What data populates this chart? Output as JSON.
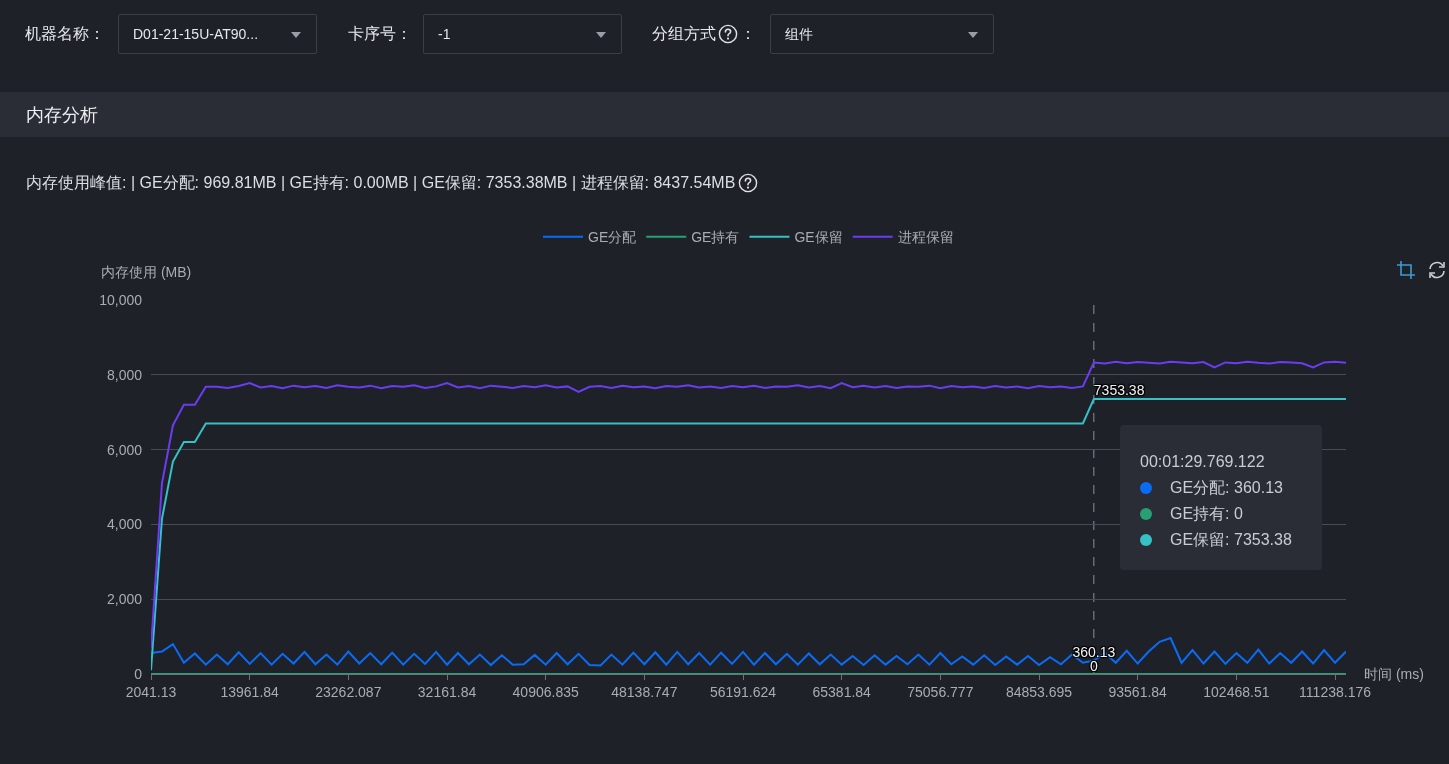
{
  "chart_data": {
    "type": "line",
    "title": "内存分析",
    "subtitle": "内存使用峰值: | GE分配: 969.81MB | GE持有: 0.00MB | GE保留: 7353.38MB | 进程保留: 8437.54MB",
    "xlabel": "时间 (ms)",
    "ylabel": "内存使用 (MB)",
    "annotations": [
      "机器名称：",
      "D01-21-15U-AT90...",
      "卡序号：",
      "-1",
      "分组方式",
      "：",
      "组件",
      "00:01:29.769.122",
      "GE分配: 360.13",
      "GE持有: 0",
      "GE保留: 7353.38"
    ],
    "categories": [
      "2041.13",
      null,
      null,
      null,
      null,
      null,
      null,
      null,
      null,
      "13961.84",
      null,
      null,
      null,
      null,
      null,
      null,
      null,
      null,
      "23262.087",
      null,
      null,
      null,
      null,
      null,
      null,
      null,
      null,
      "32161.84",
      null,
      null,
      null,
      null,
      null,
      null,
      null,
      null,
      "40906.835",
      null,
      null,
      null,
      null,
      null,
      null,
      null,
      null,
      "48138.747",
      null,
      null,
      null,
      null,
      null,
      null,
      null,
      null,
      "56191.624",
      null,
      null,
      null,
      null,
      null,
      null,
      null,
      null,
      "65381.84",
      null,
      null,
      null,
      null,
      null,
      null,
      null,
      null,
      "75056.777",
      null,
      null,
      null,
      null,
      null,
      null,
      null,
      null,
      "84853.695",
      null,
      null,
      null,
      null,
      null,
      null,
      null,
      null,
      "93561.84",
      null,
      null,
      null,
      null,
      null,
      null,
      null,
      null,
      "102468.51",
      null,
      null,
      null,
      null,
      null,
      null,
      null,
      null,
      "111238.176",
      null
    ],
    "series": [
      {
        "name": "GE分配",
        "color": "#0a6cf5",
        "values": [
          560,
          600,
          800,
          300,
          550,
          250,
          520,
          260,
          580,
          270,
          560,
          250,
          540,
          280,
          590,
          260,
          520,
          250,
          600,
          280,
          560,
          260,
          570,
          250,
          540,
          270,
          590,
          250,
          560,
          260,
          520,
          240,
          500,
          250,
          260,
          510,
          250,
          560,
          260,
          540,
          240,
          230,
          520,
          250,
          570,
          260,
          580,
          250,
          590,
          260,
          560,
          250,
          570,
          270,
          590,
          250,
          560,
          260,
          540,
          250,
          550,
          260,
          520,
          250,
          480,
          240,
          500,
          250,
          480,
          260,
          520,
          250,
          560,
          260,
          470,
          250,
          500,
          240,
          470,
          250,
          480,
          240,
          450,
          260,
          520,
          300,
          360.13,
          560,
          300,
          620,
          280,
          600,
          860,
          960,
          300,
          640,
          280,
          600,
          270,
          560,
          300,
          650,
          280,
          560,
          300,
          600,
          280,
          640,
          300,
          600
        ],
        "value_labels": [
          null,
          null,
          null,
          null,
          null,
          null,
          null,
          null,
          null,
          null,
          null,
          null,
          null,
          null,
          null,
          null,
          null,
          null,
          null,
          null,
          null,
          null,
          null,
          null,
          null,
          null,
          null,
          null,
          null,
          null,
          null,
          null,
          null,
          null,
          null,
          null,
          null,
          null,
          null,
          null,
          null,
          null,
          null,
          null,
          null,
          null,
          null,
          null,
          null,
          null,
          null,
          null,
          null,
          null,
          null,
          null,
          null,
          null,
          null,
          null,
          null,
          null,
          null,
          null,
          null,
          null,
          null,
          null,
          null,
          null,
          null,
          null,
          null,
          null,
          null,
          null,
          null,
          null,
          null,
          null,
          null,
          null,
          null,
          null,
          null,
          null,
          "360.13",
          null,
          null,
          null,
          null,
          null,
          null,
          null,
          null,
          null,
          null,
          null,
          null,
          null,
          null,
          null,
          null,
          null,
          null,
          null,
          null,
          null,
          null,
          null
        ]
      },
      {
        "name": "GE持有",
        "color": "#27a074",
        "values": [
          0,
          0,
          0,
          0,
          0,
          0,
          0,
          0,
          0,
          0,
          0,
          0,
          0,
          0,
          0,
          0,
          0,
          0,
          0,
          0,
          0,
          0,
          0,
          0,
          0,
          0,
          0,
          0,
          0,
          0,
          0,
          0,
          0,
          0,
          0,
          0,
          0,
          0,
          0,
          0,
          0,
          0,
          0,
          0,
          0,
          0,
          0,
          0,
          0,
          0,
          0,
          0,
          0,
          0,
          0,
          0,
          0,
          0,
          0,
          0,
          0,
          0,
          0,
          0,
          0,
          0,
          0,
          0,
          0,
          0,
          0,
          0,
          0,
          0,
          0,
          0,
          0,
          0,
          0,
          0,
          0,
          0,
          0,
          0,
          0,
          0,
          0,
          0,
          0,
          0,
          0,
          0,
          0,
          0,
          0,
          0,
          0,
          0,
          0,
          0,
          0,
          0,
          0,
          0,
          0,
          0,
          0,
          0,
          0,
          0
        ],
        "value_labels": [
          null,
          null,
          null,
          null,
          null,
          null,
          null,
          null,
          null,
          null,
          null,
          null,
          null,
          null,
          null,
          null,
          null,
          null,
          null,
          null,
          null,
          null,
          null,
          null,
          null,
          null,
          null,
          null,
          null,
          null,
          null,
          null,
          null,
          null,
          null,
          null,
          null,
          null,
          null,
          null,
          null,
          null,
          null,
          null,
          null,
          null,
          null,
          null,
          null,
          null,
          null,
          null,
          null,
          null,
          null,
          null,
          null,
          null,
          null,
          null,
          null,
          null,
          null,
          null,
          null,
          null,
          null,
          null,
          null,
          null,
          null,
          null,
          null,
          null,
          null,
          null,
          null,
          null,
          null,
          null,
          null,
          null,
          null,
          null,
          null,
          null,
          "0",
          null,
          null,
          null,
          null,
          null,
          null,
          null,
          null,
          null,
          null,
          null,
          null,
          null,
          null,
          null,
          null,
          null,
          null,
          null,
          null,
          null,
          null,
          null
        ]
      },
      {
        "name": "GE保留",
        "color": "#35c1c6",
        "values": [
          100,
          4150,
          5680,
          6200,
          6200,
          6700,
          6700,
          6700,
          6700,
          6700,
          6700,
          6700,
          6700,
          6700,
          6700,
          6700,
          6700,
          6700,
          6700,
          6700,
          6700,
          6700,
          6700,
          6700,
          6700,
          6700,
          6700,
          6700,
          6700,
          6700,
          6700,
          6700,
          6700,
          6700,
          6700,
          6700,
          6700,
          6700,
          6700,
          6700,
          6700,
          6700,
          6700,
          6700,
          6700,
          6700,
          6700,
          6700,
          6700,
          6700,
          6700,
          6700,
          6700,
          6700,
          6700,
          6700,
          6700,
          6700,
          6700,
          6700,
          6700,
          6700,
          6700,
          6700,
          6700,
          6700,
          6700,
          6700,
          6700,
          6700,
          6700,
          6700,
          6700,
          6700,
          6700,
          6700,
          6700,
          6700,
          6700,
          6700,
          6700,
          6700,
          6700,
          6700,
          6700,
          6700,
          7353.38,
          7350,
          7350,
          7350,
          7350,
          7350,
          7350,
          7350,
          7350,
          7350,
          7350,
          7350,
          7350,
          7350,
          7350,
          7350,
          7350,
          7350,
          7350,
          7350,
          7350,
          7350,
          7350,
          7350
        ],
        "value_labels": [
          null,
          null,
          null,
          null,
          null,
          null,
          null,
          null,
          null,
          null,
          null,
          null,
          null,
          null,
          null,
          null,
          null,
          null,
          null,
          null,
          null,
          null,
          null,
          null,
          null,
          null,
          null,
          null,
          null,
          null,
          null,
          null,
          null,
          null,
          null,
          null,
          null,
          null,
          null,
          null,
          null,
          null,
          null,
          null,
          null,
          null,
          null,
          null,
          null,
          null,
          null,
          null,
          null,
          null,
          null,
          null,
          null,
          null,
          null,
          null,
          null,
          null,
          null,
          null,
          null,
          null,
          null,
          null,
          null,
          null,
          null,
          null,
          null,
          null,
          null,
          null,
          null,
          null,
          null,
          null,
          null,
          null,
          null,
          null,
          null,
          null,
          "7353.38",
          null,
          null,
          null,
          null,
          null,
          null,
          null,
          null,
          null,
          null,
          null,
          null,
          null,
          null,
          null,
          null,
          null,
          null,
          null,
          null,
          null,
          null,
          null
        ]
      },
      {
        "name": "进程保留",
        "color": "#6a3df0",
        "values": [
          700,
          5100,
          6650,
          7200,
          7200,
          7680,
          7680,
          7650,
          7700,
          7780,
          7660,
          7700,
          7640,
          7710,
          7670,
          7700,
          7650,
          7720,
          7680,
          7660,
          7710,
          7640,
          7700,
          7680,
          7720,
          7650,
          7690,
          7780,
          7660,
          7700,
          7640,
          7710,
          7680,
          7650,
          7700,
          7670,
          7720,
          7660,
          7690,
          7540,
          7680,
          7700,
          7650,
          7710,
          7670,
          7690,
          7640,
          7700,
          7680,
          7720,
          7660,
          7690,
          7650,
          7700,
          7670,
          7710,
          7650,
          7690,
          7680,
          7720,
          7660,
          7700,
          7640,
          7780,
          7670,
          7710,
          7660,
          7700,
          7650,
          7690,
          7680,
          7710,
          7640,
          7700,
          7670,
          7690,
          7650,
          7700,
          7660,
          7690,
          7640,
          7700,
          7670,
          7690,
          7650,
          7690,
          8330,
          8300,
          8350,
          8310,
          8340,
          8320,
          8300,
          8350,
          8330,
          8310,
          8340,
          8200,
          8330,
          8310,
          8350,
          8320,
          8300,
          8340,
          8330,
          8310,
          8200,
          8330,
          8350,
          8320
        ]
      }
    ],
    "ylim": [
      0,
      10000
    ],
    "yticks": [
      0,
      {
        "value": 2000,
        "label": "2,000"
      },
      {
        "value": 4000,
        "label": "4,000"
      },
      {
        "value": 6000,
        "label": "6,000"
      },
      {
        "value": 8000,
        "label": "8,000"
      },
      {
        "value": 10000,
        "label": "10,000"
      }
    ],
    "grid": "y",
    "legend": "top"
  }
}
